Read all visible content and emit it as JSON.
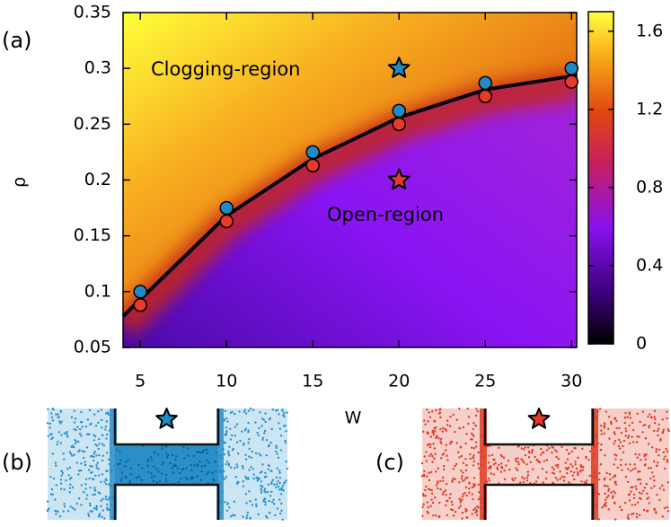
{
  "chart_data": {
    "type": "scatter",
    "xlabel": "W",
    "ylabel": "ρ",
    "xlim": [
      4,
      30.3
    ],
    "ylim": [
      0.05,
      0.35
    ],
    "xticks": [
      5,
      10,
      15,
      20,
      25,
      30
    ],
    "yticks": [
      0.05,
      0.1,
      0.15,
      0.2,
      0.25,
      0.3,
      0.35
    ],
    "series": [
      {
        "kind": "points",
        "color": "#1f8bc6",
        "x": [
          5,
          10,
          15,
          20,
          25,
          30
        ],
        "values": [
          0.1,
          0.175,
          0.225,
          0.262,
          0.287,
          0.3
        ]
      },
      {
        "kind": "points",
        "color": "#e8392a",
        "x": [
          5,
          10,
          15,
          20,
          25,
          30
        ],
        "values": [
          0.088,
          0.163,
          0.213,
          0.25,
          0.275,
          0.288
        ]
      },
      {
        "kind": "line",
        "color": "#000000",
        "x": [
          4,
          5,
          10,
          15,
          20,
          25,
          30,
          30.3
        ],
        "values": [
          0.078,
          0.093,
          0.168,
          0.219,
          0.256,
          0.281,
          0.293,
          0.294
        ]
      }
    ],
    "markers": [
      {
        "x": 20,
        "y": 0.3,
        "color": "#1f8bc6"
      },
      {
        "x": 20,
        "y": 0.2,
        "color": "#e8392a"
      }
    ],
    "colorbar": {
      "lim": [
        0,
        1.7
      ],
      "ticks": [
        0,
        0.4,
        0.8,
        1.2,
        1.6
      ]
    },
    "annotations": [
      "Clogging-region",
      "Open-region"
    ],
    "panel_labels": [
      "(a)",
      "(b)",
      "(c)"
    ]
  }
}
